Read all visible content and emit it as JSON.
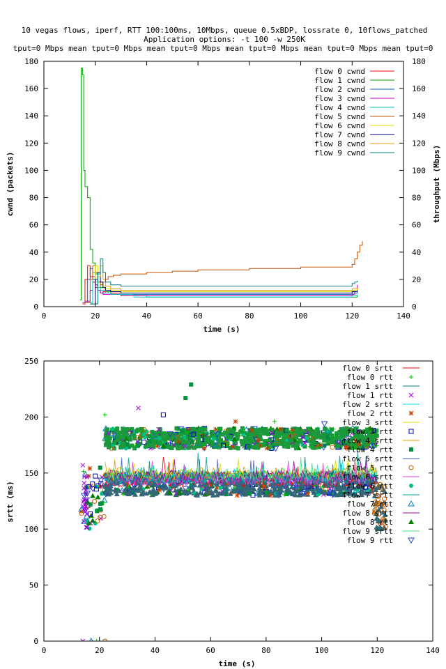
{
  "header": {
    "title_line1": "10 vegas flows, iperf, RTT 100:100ms, 10Mbps, queue 0.5xBDP, lossrate 0, 10flows_patched",
    "title_line2": "Application options: -t 100 -w 250K",
    "title_line3": "tput=0 Mbps mean tput=0 Mbps mean tput=0 Mbps mean tput=0 Mbps mean tput=0 Mbps mean tput=0"
  },
  "chart_data": [
    {
      "type": "line",
      "xlabel": "time (s)",
      "ylabel": "cwnd (packets)",
      "y2label": "throughput (Mbps)",
      "xlim": [
        0,
        140
      ],
      "ylim": [
        0,
        180
      ],
      "xticks": [
        0,
        20,
        40,
        60,
        80,
        100,
        120,
        140
      ],
      "yticks": [
        0,
        20,
        40,
        60,
        80,
        100,
        120,
        140,
        160,
        180
      ],
      "legend_position": "top-right",
      "series": [
        {
          "name": "flow 0 cwnd",
          "color": "#ff0000",
          "x": [
            15,
            16,
            17,
            18,
            19,
            20,
            21,
            22,
            23,
            25,
            30,
            40,
            60,
            80,
            100,
            118,
            120,
            121,
            122
          ],
          "y": [
            2,
            20,
            30,
            22,
            18,
            14,
            12,
            10,
            11,
            10,
            10,
            10,
            10,
            10,
            10,
            10,
            10,
            12,
            14
          ]
        },
        {
          "name": "flow 1 cwnd",
          "color": "#00a000",
          "x": [
            14,
            14.5,
            15,
            15.5,
            16,
            17,
            18,
            19,
            20,
            21,
            22,
            24,
            26,
            30,
            35,
            40,
            60,
            80,
            100,
            120,
            122
          ],
          "y": [
            5,
            175,
            170,
            100,
            88,
            80,
            42,
            32,
            24,
            18,
            14,
            11,
            9,
            8,
            8,
            7,
            7,
            7,
            7,
            7,
            8
          ]
        },
        {
          "name": "flow 2 cwnd",
          "color": "#0060c0",
          "x": [
            15,
            17,
            18,
            19,
            20,
            21,
            22,
            24,
            26,
            30,
            40,
            60,
            80,
            100,
            118,
            120,
            122
          ],
          "y": [
            3,
            20,
            28,
            20,
            16,
            12,
            10,
            10,
            9,
            9,
            9,
            9,
            9,
            9,
            9,
            10,
            12
          ]
        },
        {
          "name": "flow 3 cwnd",
          "color": "#c000c0",
          "x": [
            16,
            18,
            19,
            20,
            21,
            22,
            23,
            25,
            30,
            40,
            60,
            80,
            100,
            118,
            120,
            121,
            122
          ],
          "y": [
            4,
            12,
            22,
            16,
            12,
            10,
            9,
            9,
            8,
            8,
            8,
            8,
            8,
            8,
            9,
            12,
            16
          ]
        },
        {
          "name": "flow 4 cwnd",
          "color": "#00c0c0",
          "x": [
            17,
            19,
            20,
            21,
            22,
            24,
            26,
            30,
            35,
            40,
            60,
            80,
            100,
            120,
            122
          ],
          "y": [
            3,
            25,
            18,
            14,
            12,
            10,
            9,
            9,
            7,
            7,
            7,
            7,
            7,
            8,
            9
          ]
        },
        {
          "name": "flow 5 cwnd",
          "color": "#c05000",
          "x": [
            16,
            18,
            19,
            20,
            21,
            22,
            23,
            24,
            25,
            27,
            30,
            40,
            50,
            60,
            80,
            100,
            110,
            118,
            120,
            121,
            122,
            123,
            124
          ],
          "y": [
            3,
            20,
            30,
            25,
            18,
            16,
            18,
            20,
            22,
            23,
            24,
            25,
            26,
            27,
            28,
            29,
            29,
            29,
            31,
            35,
            40,
            45,
            48
          ]
        },
        {
          "name": "flow 6 cwnd",
          "color": "#e0e000",
          "x": [
            18,
            20,
            21,
            22,
            23,
            24,
            26,
            30,
            40,
            60,
            80,
            100,
            118,
            120,
            122
          ],
          "y": [
            2,
            30,
            22,
            18,
            15,
            13,
            12,
            11,
            11,
            11,
            11,
            11,
            11,
            12,
            13
          ]
        },
        {
          "name": "flow 7 cwnd",
          "color": "#000080",
          "x": [
            18,
            20,
            21,
            22,
            23,
            24,
            26,
            30,
            40,
            60,
            80,
            100,
            118,
            120,
            122
          ],
          "y": [
            2,
            20,
            25,
            18,
            14,
            12,
            11,
            10,
            10,
            10,
            10,
            10,
            10,
            11,
            12
          ]
        },
        {
          "name": "flow 8 cwnd",
          "color": "#e0a000",
          "x": [
            19,
            21,
            22,
            23,
            24,
            26,
            30,
            40,
            60,
            80,
            100,
            118,
            120,
            122
          ],
          "y": [
            2,
            22,
            30,
            20,
            15,
            13,
            12,
            12,
            12,
            12,
            12,
            12,
            13,
            14
          ]
        },
        {
          "name": "flow 9 cwnd",
          "color": "#008080",
          "x": [
            19,
            21,
            22,
            23,
            24,
            26,
            30,
            40,
            60,
            80,
            100,
            118,
            120,
            121,
            122
          ],
          "y": [
            2,
            24,
            35,
            25,
            18,
            16,
            15,
            15,
            15,
            15,
            15,
            15,
            17,
            18,
            19
          ]
        }
      ]
    },
    {
      "type": "scatter",
      "xlabel": "time (s)",
      "ylabel": "srtt (ms)",
      "xlim": [
        0,
        140
      ],
      "ylim": [
        0,
        250
      ],
      "xticks": [
        0,
        20,
        40,
        60,
        80,
        100,
        120,
        140
      ],
      "yticks": [
        0,
        50,
        100,
        150,
        200,
        250
      ],
      "legend_position": "top-right",
      "series": [
        {
          "name": "flow 0 srtt",
          "style": "line",
          "color": "#ff0000"
        },
        {
          "name": "flow 0 rtt",
          "style": "+",
          "color": "#00c000"
        },
        {
          "name": "flow 1 srtt",
          "style": "line",
          "color": "#008080"
        },
        {
          "name": "flow 1 rtt",
          "style": "x",
          "color": "#a000e0"
        },
        {
          "name": "flow 2 srtt",
          "style": "line",
          "color": "#00e0e0"
        },
        {
          "name": "flow 2 rtt",
          "style": "*",
          "color": "#c04000"
        },
        {
          "name": "flow 3 srtt",
          "style": "line",
          "color": "#e0e000"
        },
        {
          "name": "flow 3 rtt",
          "style": "square-open",
          "color": "#0000c0"
        },
        {
          "name": "flow 4 srtt",
          "style": "line",
          "color": "#e0a000"
        },
        {
          "name": "flow 4 rtt",
          "style": "square-filled",
          "color": "#009040"
        },
        {
          "name": "flow 5 srtt",
          "style": "line",
          "color": "#4060c0"
        },
        {
          "name": "flow 5 rtt",
          "style": "circle-open",
          "color": "#c06000"
        },
        {
          "name": "flow 6 srtt",
          "style": "line",
          "color": "#e040e0"
        },
        {
          "name": "flow 6 rtt",
          "style": "circle-filled",
          "color": "#00c080"
        },
        {
          "name": "flow 7 srtt",
          "style": "line",
          "color": "#00a0a0"
        },
        {
          "name": "flow 7 rtt",
          "style": "triangle-open",
          "color": "#0080c0"
        },
        {
          "name": "flow 8 srtt",
          "style": "line",
          "color": "#a000a0"
        },
        {
          "name": "flow 8 rtt",
          "style": "triangle-filled",
          "color": "#008000"
        },
        {
          "name": "flow 9 srtt",
          "style": "line",
          "color": "#40e080"
        },
        {
          "name": "flow 9 rtt",
          "style": "triangle-down-open",
          "color": "#2040c0"
        }
      ],
      "bands": [
        {
          "t_start": 22,
          "t_end": 120,
          "y_low": 130,
          "y_high": 150,
          "color": "#336677"
        },
        {
          "t_start": 22,
          "t_end": 120,
          "y_low": 172,
          "y_high": 190,
          "color": "#1a9a3a"
        }
      ],
      "outliers": [
        {
          "x": 53,
          "y": 229,
          "style": "square-filled",
          "color": "#009040"
        },
        {
          "x": 51,
          "y": 217,
          "style": "square-filled",
          "color": "#009040"
        },
        {
          "x": 34,
          "y": 208,
          "style": "x",
          "color": "#a000e0"
        },
        {
          "x": 22,
          "y": 202,
          "style": "+",
          "color": "#00c000"
        },
        {
          "x": 43,
          "y": 202,
          "style": "square-open",
          "color": "#0000c0"
        },
        {
          "x": 14,
          "y": 157,
          "style": "x",
          "color": "#a000e0"
        },
        {
          "x": 101,
          "y": 194,
          "style": "triangle-down-open",
          "color": "#2040c0"
        },
        {
          "x": 83,
          "y": 196,
          "style": "+",
          "color": "#00c000"
        },
        {
          "x": 69,
          "y": 196,
          "style": "*",
          "color": "#c04000"
        },
        {
          "x": 122,
          "y": 107,
          "style": "circle-open",
          "color": "#c06000"
        },
        {
          "x": 123,
          "y": 102,
          "style": "circle-open",
          "color": "#c06000"
        },
        {
          "x": 22,
          "y": 0,
          "style": "circle-open",
          "color": "#c06000"
        },
        {
          "x": 14,
          "y": 0,
          "style": "x",
          "color": "#a000e0"
        },
        {
          "x": 17,
          "y": 0,
          "style": "triangle-open",
          "color": "#0080c0"
        },
        {
          "x": 19,
          "y": 0,
          "style": "+",
          "color": "#00c000"
        }
      ]
    }
  ]
}
